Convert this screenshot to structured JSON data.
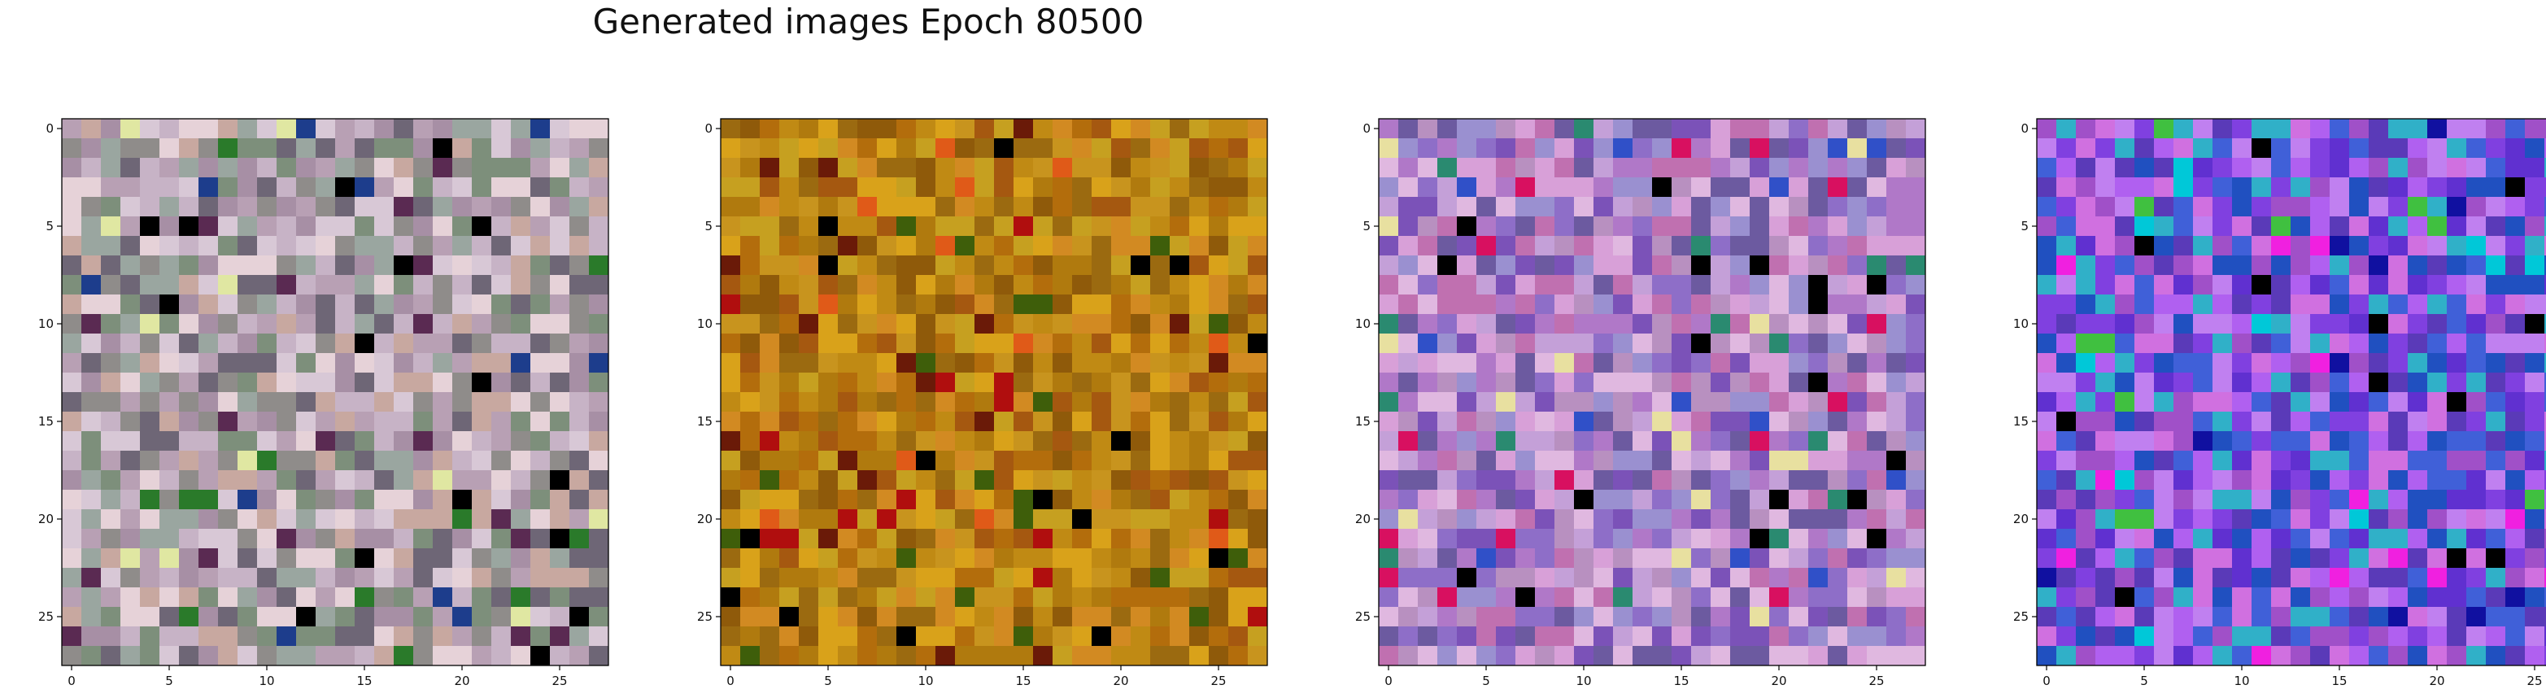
{
  "figure": {
    "title": "Generated images Epoch 80500"
  },
  "grid_size": 28,
  "axes": {
    "xticks": [
      "0",
      "5",
      "10",
      "15",
      "20",
      "25"
    ],
    "yticks": [
      "0",
      "5",
      "10",
      "15",
      "20",
      "25"
    ]
  },
  "panels": [
    {
      "name": "image-panel-1",
      "palette": [
        "#b8a0b4",
        "#c7b3c6",
        "#a78fa5",
        "#8f8c8a",
        "#d8c8d6",
        "#9aa6a0",
        "#6e6676",
        "#e6d2d8",
        "#c8a8a0",
        "#7d8f7b"
      ],
      "accents": [
        "#000000",
        "#1d3d8c",
        "#2a7a2a",
        "#5a2a52",
        "#e0e7a2"
      ]
    },
    {
      "name": "image-panel-2",
      "palette": [
        "#c08a14",
        "#b36d0c",
        "#d9a21a",
        "#a55810",
        "#c8941e",
        "#9b6a10",
        "#b07a0e",
        "#d28a22",
        "#8f5a0a",
        "#c6a020"
      ],
      "accents": [
        "#000000",
        "#6a1a08",
        "#e05a18",
        "#3e5e0a",
        "#b00e0e"
      ]
    },
    {
      "name": "image-panel-3",
      "palette": [
        "#b078c8",
        "#8e6ec8",
        "#d8a0d8",
        "#6c5aa0",
        "#c4a0d8",
        "#9a90d0",
        "#e0b8e0",
        "#7b52b8",
        "#b890c0",
        "#c070b0"
      ],
      "accents": [
        "#000000",
        "#2a8a70",
        "#d81060",
        "#3050c8",
        "#e8e0a0"
      ]
    },
    {
      "name": "image-panel-4",
      "palette": [
        "#8040e0",
        "#6030d0",
        "#b060f0",
        "#4060d8",
        "#30b0c8",
        "#a050c8",
        "#c080f0",
        "#2050c0",
        "#5a3ab8",
        "#d070e0"
      ],
      "accents": [
        "#000000",
        "#00c8d8",
        "#f020e0",
        "#1010a0",
        "#40c040"
      ]
    }
  ]
}
